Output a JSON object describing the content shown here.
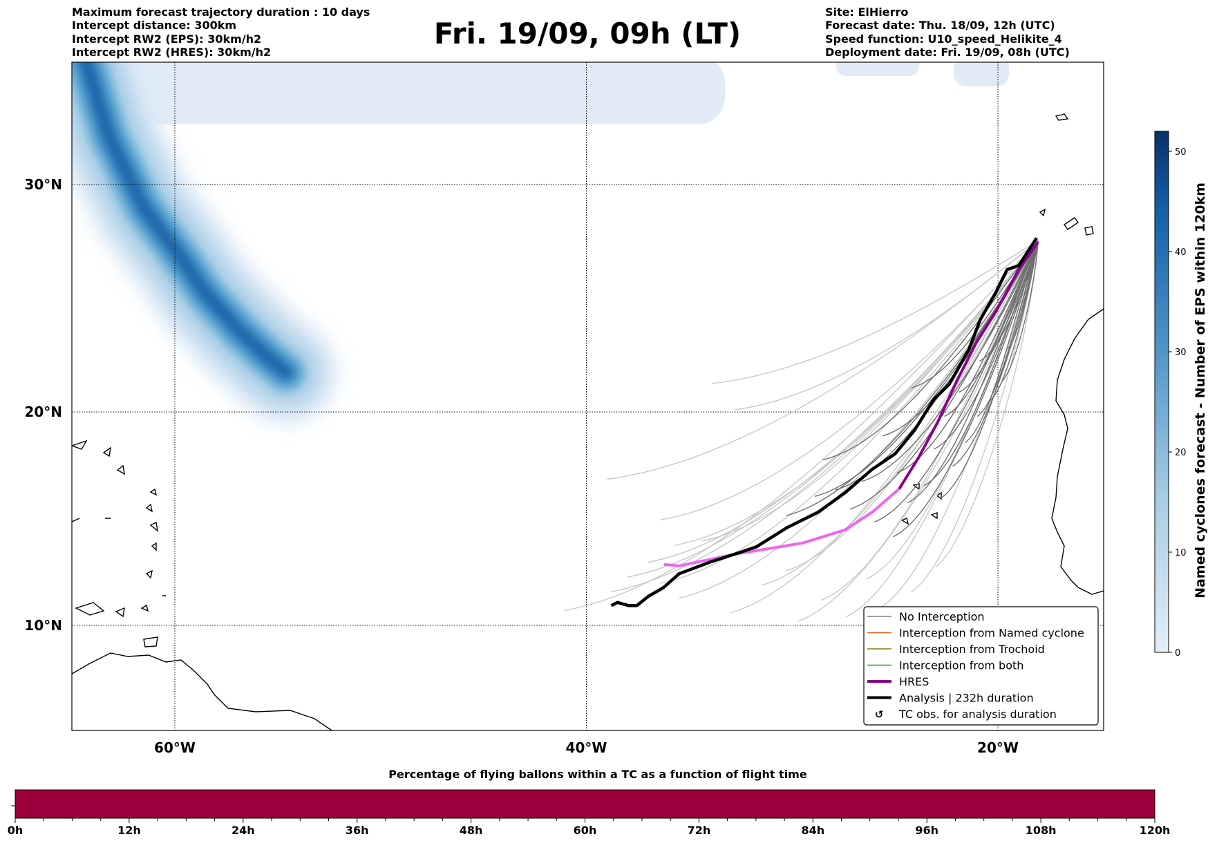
{
  "header": {
    "left": [
      "Maximum forecast trajectory duration : 10 days",
      "Intercept distance: 300km",
      "Intercept RW2 (EPS):  30km/h2",
      "Intercept RW2 (HRES): 30km/h2"
    ],
    "title": "Fri. 19/09, 09h (LT)",
    "right": [
      "Site: ElHierro",
      "Forecast date: Thu. 18/09, 12h (UTC)",
      "Speed function: U10_speed_Helikite_4",
      "Deployment date: Fri. 19/09, 08h (UTC)"
    ]
  },
  "chart_data": {
    "type": "map",
    "lon_range": [
      -65,
      -15
    ],
    "lat_range": [
      5,
      35
    ],
    "lon_ticks": [
      {
        "v": -60,
        "label": "60°W"
      },
      {
        "v": -40,
        "label": "40°W"
      },
      {
        "v": -20,
        "label": "20°W"
      }
    ],
    "lat_ticks": [
      {
        "v": 30,
        "label": "30°N"
      },
      {
        "v": 20,
        "label": "20°N"
      },
      {
        "v": 10,
        "label": "10°N"
      }
    ],
    "origin": [
      -18.05,
      27.6
    ],
    "hres_track": [
      [
        -18.05,
        27.55
      ],
      [
        -18.99,
        26.36
      ],
      [
        -20.11,
        24.49
      ],
      [
        -21.05,
        23.13
      ],
      [
        -21.99,
        21.43
      ],
      [
        -22.93,
        19.53
      ],
      [
        -23.86,
        17.9
      ],
      [
        -24.8,
        16.45
      ],
      [
        -26.11,
        15.36
      ],
      [
        -27.43,
        14.53
      ],
      [
        -29.49,
        13.91
      ],
      [
        -32.87,
        13.37
      ],
      [
        -35.49,
        12.83
      ],
      [
        -36.24,
        12.9
      ]
    ],
    "hres_dark_points": 8,
    "analysis_track": [
      [
        -18.12,
        27.72
      ],
      [
        -18.99,
        26.53
      ],
      [
        -19.55,
        26.36
      ],
      [
        -20.11,
        25.34
      ],
      [
        -20.86,
        24.15
      ],
      [
        -21.43,
        22.79
      ],
      [
        -22.36,
        21.26
      ],
      [
        -23.11,
        20.58
      ],
      [
        -24.05,
        19.17
      ],
      [
        -24.99,
        18.08
      ],
      [
        -26.11,
        17.36
      ],
      [
        -27.43,
        16.27
      ],
      [
        -28.74,
        15.36
      ],
      [
        -30.24,
        14.64
      ],
      [
        -31.74,
        13.73
      ],
      [
        -32.49,
        13.48
      ],
      [
        -33.99,
        13.01
      ],
      [
        -35.49,
        12.46
      ],
      [
        -36.24,
        11.81
      ],
      [
        -36.99,
        11.38
      ],
      [
        -37.55,
        10.94
      ],
      [
        -37.93,
        10.94
      ],
      [
        -38.49,
        11.09
      ],
      [
        -38.79,
        10.94
      ]
    ],
    "ensemble_dark_ends": [
      [
        -28.5,
        17.8
      ],
      [
        -27.2,
        15.5
      ],
      [
        -26.0,
        14.9
      ],
      [
        -25.1,
        14.2
      ],
      [
        -24.4,
        15.8
      ],
      [
        -23.6,
        16.6
      ],
      [
        -22.8,
        16.0
      ],
      [
        -22.2,
        17.5
      ],
      [
        -21.6,
        18.6
      ],
      [
        -21.0,
        19.8
      ],
      [
        -20.4,
        20.5
      ],
      [
        -19.8,
        21.4
      ],
      [
        -27.9,
        16.4
      ],
      [
        -24.9,
        17.2
      ],
      [
        -23.1,
        18.3
      ],
      [
        -26.6,
        16.8
      ],
      [
        -22.6,
        19.8
      ],
      [
        -25.6,
        18.9
      ],
      [
        -21.9,
        20.9
      ],
      [
        -20.9,
        22.3
      ],
      [
        -24.2,
        21.1
      ],
      [
        -19.5,
        22.9
      ],
      [
        -28.9,
        16.1
      ],
      [
        -30.3,
        15.2
      ]
    ],
    "ensemble_light_ends": [
      [
        -41.1,
        10.7
      ],
      [
        -39.0,
        16.9
      ],
      [
        -37.0,
        13.0
      ],
      [
        -38.0,
        12.3
      ],
      [
        -35.5,
        11.3
      ],
      [
        -34.4,
        14.0
      ],
      [
        -36.4,
        12.0
      ],
      [
        -33.0,
        10.6
      ],
      [
        -31.5,
        11.9
      ],
      [
        -29.7,
        10.2
      ],
      [
        -28.6,
        11.2
      ],
      [
        -27.4,
        10.4
      ],
      [
        -25.8,
        10.8
      ],
      [
        -24.2,
        11.6
      ],
      [
        -23.0,
        12.8
      ],
      [
        -33.9,
        21.3
      ],
      [
        -32.8,
        20.1
      ],
      [
        -36.4,
        15.0
      ],
      [
        -35.7,
        13.8
      ],
      [
        -38.8,
        11.6
      ],
      [
        -30.3,
        12.6
      ],
      [
        -26.4,
        12.2
      ]
    ],
    "cyclone_density_ridge": [
      [
        -64.5,
        35.5
      ],
      [
        -63.2,
        32
      ],
      [
        -61.5,
        29
      ],
      [
        -59.8,
        27
      ],
      [
        -58.5,
        25.3
      ],
      [
        -56.8,
        23.6
      ],
      [
        -55.4,
        22.4
      ],
      [
        -54.6,
        21.8
      ]
    ],
    "colorbar": {
      "label": "Named cyclones forecast - Number of EPS within 120km",
      "min": 0,
      "max": 52,
      "ticks": [
        0,
        10,
        20,
        30,
        40,
        50
      ],
      "color_low": "#deebf7",
      "color_high": "#08306b"
    },
    "legend": [
      {
        "label": "No Interception",
        "color": "#7f7f7f",
        "kind": "line"
      },
      {
        "label": "Interception from Named cyclone",
        "color": "#ff5a1a",
        "kind": "line"
      },
      {
        "label": "Interception from Trochoid",
        "color": "#808000",
        "kind": "line"
      },
      {
        "label": "Interception from both",
        "color": "#1f9a1f",
        "kind": "line"
      },
      {
        "label": "HRES",
        "color": "#8b008b",
        "kind": "thick"
      },
      {
        "label": "Analysis | 232h duration",
        "color": "#000000",
        "kind": "thick"
      },
      {
        "label": "TC obs. for analysis duration",
        "color": "#000000",
        "kind": "symbol",
        "symbol": "↺"
      }
    ],
    "hres_light_color": "#ee66ee",
    "bottom_bar": {
      "title": "Percentage of flying ballons within a TC as a function of flight time",
      "color": "#9b003c",
      "hours_max": 120,
      "tick_labels": [
        "0h",
        "12h",
        "24h",
        "36h",
        "48h",
        "60h",
        "72h",
        "84h",
        "96h",
        "108h",
        "120h"
      ]
    }
  }
}
